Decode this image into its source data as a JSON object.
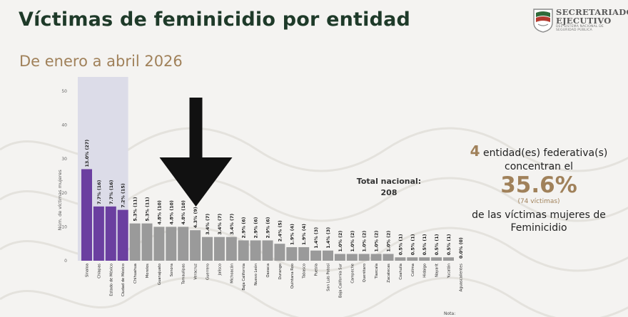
{
  "title": "Víctimas de feminicidio por entidad",
  "subtitle": "De enero a abril 2026",
  "logo": {
    "line1": "SECRETARIADO",
    "line2": "EJECUTIVO",
    "line3": "DEL SISTEMA NACIONAL DE SEGURIDAD PÚBLICA"
  },
  "summary": {
    "count": "4",
    "line1_rest": " entidad(es)  federativa(s)",
    "line2": "concentran el",
    "percent": "35.6%",
    "victims": "(74  víctimas)",
    "line4": "de las  víctimas  mujeres de",
    "line5": "Feminicidio"
  },
  "total": {
    "label": "Total nacional:",
    "value": "208"
  },
  "note": "Nota:",
  "colors": {
    "highlight": "#6b3fa0",
    "other": "#9a9a9a",
    "highlight_band": "#dcdce8",
    "accent": "#a0815a",
    "title": "#1e3a29"
  },
  "annotation": {
    "type": "down-arrow",
    "color": "#111111"
  },
  "chart_data": {
    "type": "bar",
    "ylabel": "Núm. de víctimas mujeres",
    "ylim": [
      0,
      50
    ],
    "yticks": [
      0,
      10,
      20,
      30,
      40,
      50
    ],
    "highlight_count": 4,
    "categories": [
      "Sinaloa",
      "Chiapas",
      "Estado de México",
      "Ciudad de México",
      "Chihuahua",
      "Morelos",
      "Guanajuato",
      "Sonora",
      "Tamaulipas",
      "Veracruz",
      "Guerrero",
      "Jalisco",
      "Michoacán",
      "Baja California",
      "Nuevo León",
      "Oaxaca",
      "Durango",
      "Quintana Roo",
      "Tabasco",
      "Puebla",
      "San Luis Potosí",
      "Baja California Sur",
      "Campeche",
      "Querétaro",
      "Tlaxcala",
      "Zacatecas",
      "Coahuila",
      "Colima",
      "Hidalgo",
      "Nayarit",
      "Yucatán",
      "Aguascalientes"
    ],
    "values": [
      27,
      16,
      16,
      15,
      11,
      11,
      10,
      10,
      10,
      9,
      7,
      7,
      7,
      6,
      6,
      6,
      5,
      4,
      4,
      3,
      3,
      2,
      2,
      2,
      2,
      2,
      1,
      1,
      1,
      1,
      1,
      0
    ],
    "labels": [
      "13.0% (27)",
      "7.7% (16)",
      "7.7% (16)",
      "7.2% (15)",
      "5.3% (11)",
      "5.3% (11)",
      "4.8% (10)",
      "4.8% (10)",
      "4.8% (10)",
      "4.3% (9)",
      "3.4% (7)",
      "3.4% (7)",
      "3.4% (7)",
      "2.9% (6)",
      "2.9% (6)",
      "2.9% (6)",
      "2.4% (5)",
      "1.9% (4)",
      "1.9% (4)",
      "1.4% (3)",
      "1.4% (3)",
      "1.0% (2)",
      "1.0% (2)",
      "1.0% (2)",
      "1.0% (2)",
      "1.0% (2)",
      "0.5% (1)",
      "0.5% (1)",
      "0.5% (1)",
      "0.5% (1)",
      "0.5% (1)",
      "0.0% (0)"
    ]
  }
}
